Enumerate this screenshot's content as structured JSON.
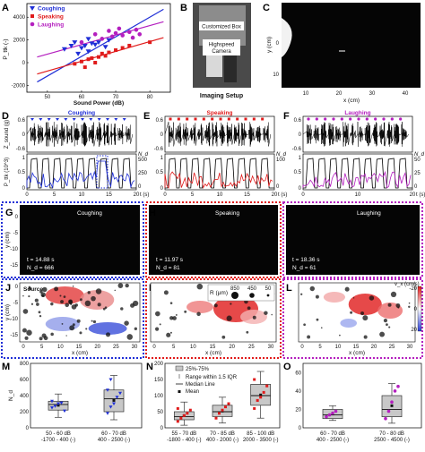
{
  "panels": {
    "A": "A",
    "B": "B",
    "C": "C",
    "D": "D",
    "E": "E",
    "F": "F",
    "G": "G",
    "H": "H",
    "I": "I",
    "J": "J",
    "K": "K",
    "L": "L",
    "M": "M",
    "N": "N",
    "O": "O"
  },
  "colors": {
    "coughing": "#1f2fd6",
    "speaking": "#e01b1b",
    "laughing": "#b41fbf",
    "box": "#c8c8c8"
  },
  "panelA": {
    "xlabel": "Sound Power (dB)",
    "ylabel": "P_ttk (-)",
    "xticks": [
      "50",
      "60",
      "70",
      "80"
    ],
    "yticks": [
      "4000",
      "2000",
      "0",
      "-2000"
    ],
    "legend": [
      "Coughing",
      "Speaking",
      "Laughing"
    ]
  },
  "panelB": {
    "label_box": "Customized Box",
    "label_camera": "Highspeed\nCamera",
    "caption": "Imaging Setup"
  },
  "panelC": {
    "ylabel": "y (cm)",
    "xlabel": "x (cm)",
    "xticks": [
      "10",
      "20",
      "30",
      "40"
    ],
    "yticks": [
      "0",
      "10"
    ]
  },
  "row2": {
    "titles": [
      "Coughing",
      "Speaking",
      "Laughing"
    ],
    "zlabel": "Z_sound (g)",
    "plabel": "P_ttk (10^3)",
    "nlabel": "N_d",
    "xlabel": "t (s)",
    "ztick": [
      "0.6",
      "0",
      "-0.6"
    ],
    "ptick": [
      "1",
      "0.5",
      "0"
    ],
    "nticks_D": [
      "500",
      "250",
      "0"
    ],
    "nticks_E": [
      "100",
      "0"
    ],
    "nticks_F": [
      "50",
      "25",
      "0"
    ],
    "xticks": [
      "0",
      "5",
      "10",
      "15",
      "20"
    ],
    "xticks_F": [
      "0",
      "10",
      "20"
    ]
  },
  "row3": {
    "titles": [
      "Coughing",
      "Speaking",
      "Laughing"
    ],
    "G_t": "t = 14.88 s",
    "G_n": "N_d = 666",
    "H_t": "t = 11.97 s",
    "H_n": "N_d = 81",
    "I_t": "t = 18.36 s",
    "I_n": "N_d = 61",
    "ylabel": "y (cm)",
    "yticks": [
      "0",
      "-5",
      "-10",
      "-15"
    ]
  },
  "row4": {
    "source": "Source",
    "xlabel": "x (cm)",
    "ylabel": "y (cm)",
    "xticks": [
      "0",
      "5",
      "10",
      "15",
      "20",
      "25",
      "30"
    ],
    "yticks": [
      "0",
      "-5",
      "-10",
      "-15"
    ],
    "R_label": "R (μm)",
    "R_values": [
      "850",
      "450",
      "50"
    ],
    "cbar_label": "v_x (cm/s)",
    "cbar_ticks": [
      "-20",
      "0",
      "20"
    ]
  },
  "panelM": {
    "ylabel": "N_d",
    "yticks": [
      "800",
      "600",
      "400",
      "200",
      "0"
    ],
    "cats": [
      "50 - 60 dB\n-1700 - 400 (-)",
      "60 - 70 dB\n400 - 2500 (-)"
    ]
  },
  "panelN": {
    "yticks": [
      "200",
      "150",
      "100",
      "50",
      "0"
    ],
    "legend": [
      "25%-75%",
      "Range within 1.5 IQR",
      "Median Line",
      "Mean"
    ],
    "cats": [
      "55 - 70 dB\n-1800 - 400 (-)",
      "70 - 85 dB\n400 - 2000 (-)",
      "85 - 100 dB\n2000 - 3500 (-)"
    ]
  },
  "panelO": {
    "yticks": [
      "60",
      "40",
      "20",
      "0"
    ],
    "cats": [
      "60 - 70 dB\n400 - 2500 (-)",
      "70 - 80 dB\n2500 - 4500 (-)"
    ]
  },
  "chart_data": [
    {
      "type": "scatter",
      "title": "",
      "xlabel": "Sound Power (dB)",
      "ylabel": "P_ttk (-)",
      "xlim": [
        44,
        86
      ],
      "ylim": [
        -2600,
        5200
      ],
      "series": [
        {
          "name": "Coughing",
          "marker": "triangle-down",
          "x": [
            55,
            57,
            58,
            59,
            60,
            61,
            62,
            62,
            63,
            64,
            65,
            67,
            68
          ],
          "y": [
            1200,
            1500,
            1800,
            800,
            1300,
            1500,
            2100,
            1000,
            1700,
            1600,
            1800,
            1400,
            2000
          ]
        },
        {
          "name": "Speaking",
          "marker": "square",
          "x": [
            58,
            60,
            61,
            62,
            63,
            64,
            65,
            66,
            67,
            68,
            70,
            72,
            74,
            80
          ],
          "y": [
            -100,
            100,
            -400,
            300,
            400,
            0,
            500,
            800,
            600,
            900,
            1100,
            1300,
            1500,
            1800
          ]
        },
        {
          "name": "Laughing",
          "marker": "circle",
          "x": [
            60,
            64,
            66,
            68,
            69,
            70,
            71,
            72,
            74,
            75,
            76,
            77
          ],
          "y": [
            1800,
            2500,
            2100,
            2800,
            2300,
            2600,
            3000,
            2400,
            2700,
            2200,
            2900,
            2500
          ]
        }
      ],
      "fits": [
        {
          "name": "Coughing",
          "x": [
            47,
            84
          ],
          "y": [
            -1700,
            4700
          ]
        },
        {
          "name": "Speaking",
          "x": [
            47,
            84
          ],
          "y": [
            -1000,
            2200
          ]
        },
        {
          "name": "Laughing",
          "x": [
            47,
            84
          ],
          "y": [
            500,
            3600
          ]
        }
      ]
    },
    {
      "type": "box",
      "title": "",
      "ylabel": "N_d",
      "ylim": [
        0,
        800
      ],
      "categories": [
        "50 - 60 dB -1700 - 400 (-)",
        "60 - 70 dB 400 - 2500 (-)"
      ],
      "boxes": [
        {
          "q1": 220,
          "median": 290,
          "q3": 330,
          "whisker_low": 130,
          "whisker_high": 420,
          "mean": 280,
          "points": [
            250,
            270,
            300,
            310,
            210,
            330
          ]
        },
        {
          "q1": 200,
          "median": 360,
          "q3": 470,
          "whisker_low": 100,
          "whisker_high": 650,
          "mean": 340,
          "points": [
            180,
            260,
            300,
            380,
            430,
            470,
            600
          ]
        }
      ]
    },
    {
      "type": "box",
      "title": "",
      "ylim": [
        0,
        200
      ],
      "categories": [
        "55 - 70 dB -1800 - 400 (-)",
        "70 - 85 dB 400 - 2000 (-)",
        "85 - 100 dB 2000 - 3500 (-)"
      ],
      "boxes": [
        {
          "q1": 25,
          "median": 35,
          "q3": 50,
          "whisker_low": 8,
          "whisker_high": 80,
          "mean": 38,
          "points": [
            20,
            30,
            38,
            45,
            55,
            60
          ]
        },
        {
          "q1": 35,
          "median": 50,
          "q3": 70,
          "whisker_low": 15,
          "whisker_high": 95,
          "mean": 52,
          "points": [
            30,
            45,
            55,
            65,
            75
          ]
        },
        {
          "q1": 70,
          "median": 100,
          "q3": 135,
          "whisker_low": 30,
          "whisker_high": 175,
          "mean": 102,
          "points": [
            60,
            85,
            95,
            110,
            130,
            150
          ]
        }
      ]
    },
    {
      "type": "box",
      "title": "",
      "ylim": [
        0,
        70
      ],
      "categories": [
        "60 - 70 dB 400 - 2500 (-)",
        "70 - 80 dB 2500 - 4500 (-)"
      ],
      "boxes": [
        {
          "q1": 10,
          "median": 14,
          "q3": 20,
          "whisker_low": 8,
          "whisker_high": 24,
          "mean": 15,
          "points": [
            12,
            14,
            16,
            18
          ]
        },
        {
          "q1": 12,
          "median": 20,
          "q3": 35,
          "whisker_low": 5,
          "whisker_high": 48,
          "mean": 24,
          "points": [
            10,
            18,
            28,
            40,
            45
          ]
        }
      ]
    }
  ]
}
